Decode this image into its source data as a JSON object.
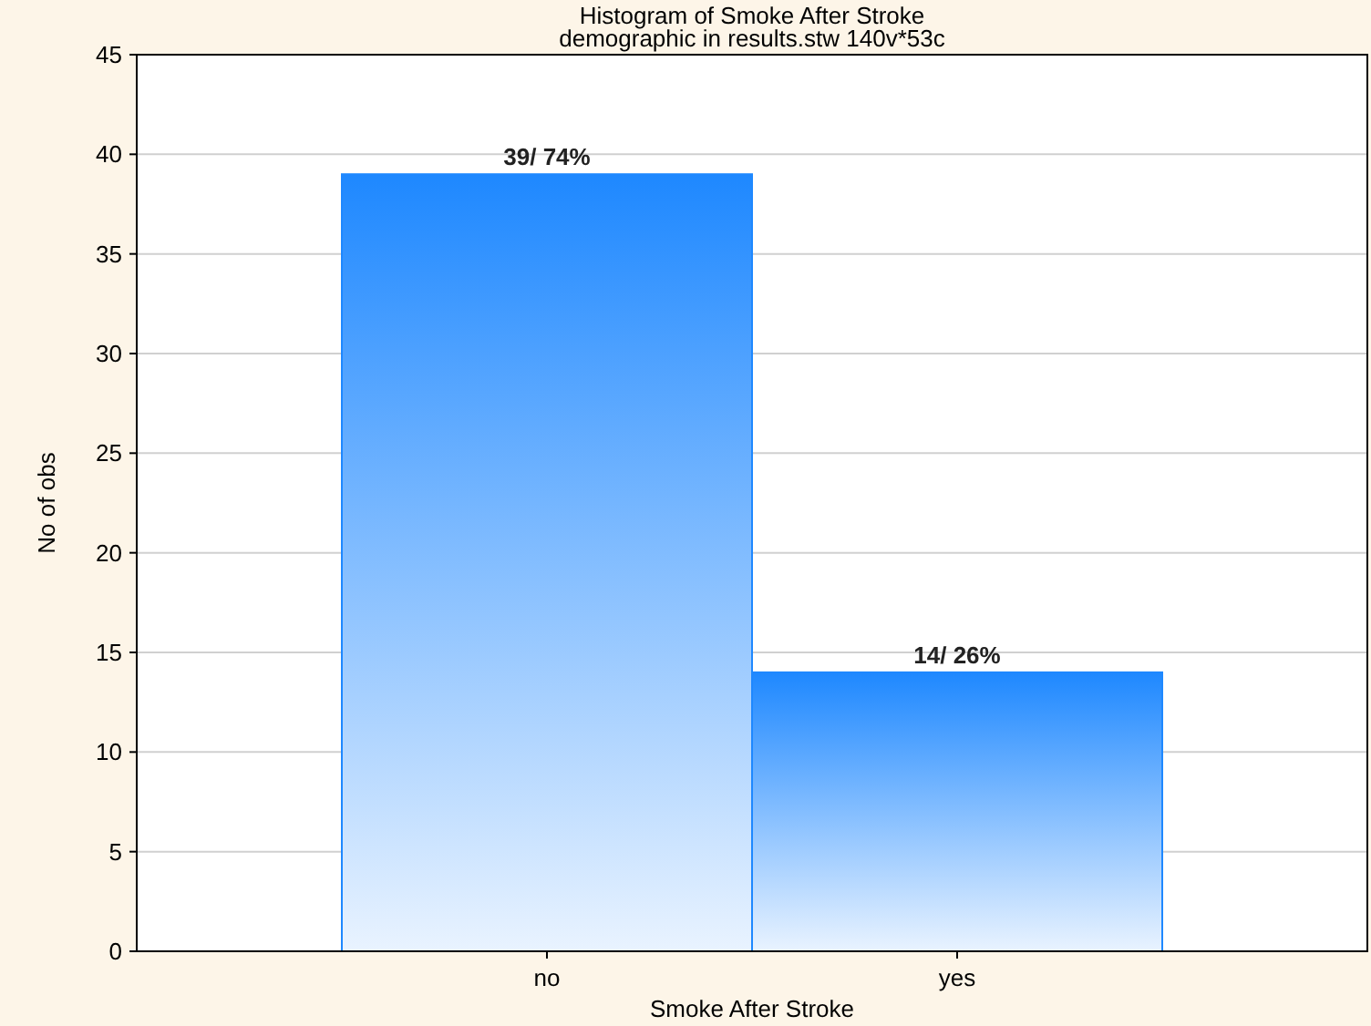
{
  "chart_data": {
    "type": "bar",
    "title": "Histogram of Smoke After Stroke",
    "subtitle": "demographic in results.stw 140v*53c",
    "xlabel": "Smoke After Stroke",
    "ylabel": "No of obs",
    "categories": [
      "no",
      "yes"
    ],
    "values": [
      39,
      14
    ],
    "color": "#1e88ff",
    "value_labels": [
      "39/ 74%",
      "14/ 26%"
    ],
    "ylim": [
      0,
      45
    ],
    "yticks": [
      0,
      5,
      10,
      15,
      20,
      25,
      30,
      35,
      40,
      45
    ],
    "grid": "y"
  }
}
